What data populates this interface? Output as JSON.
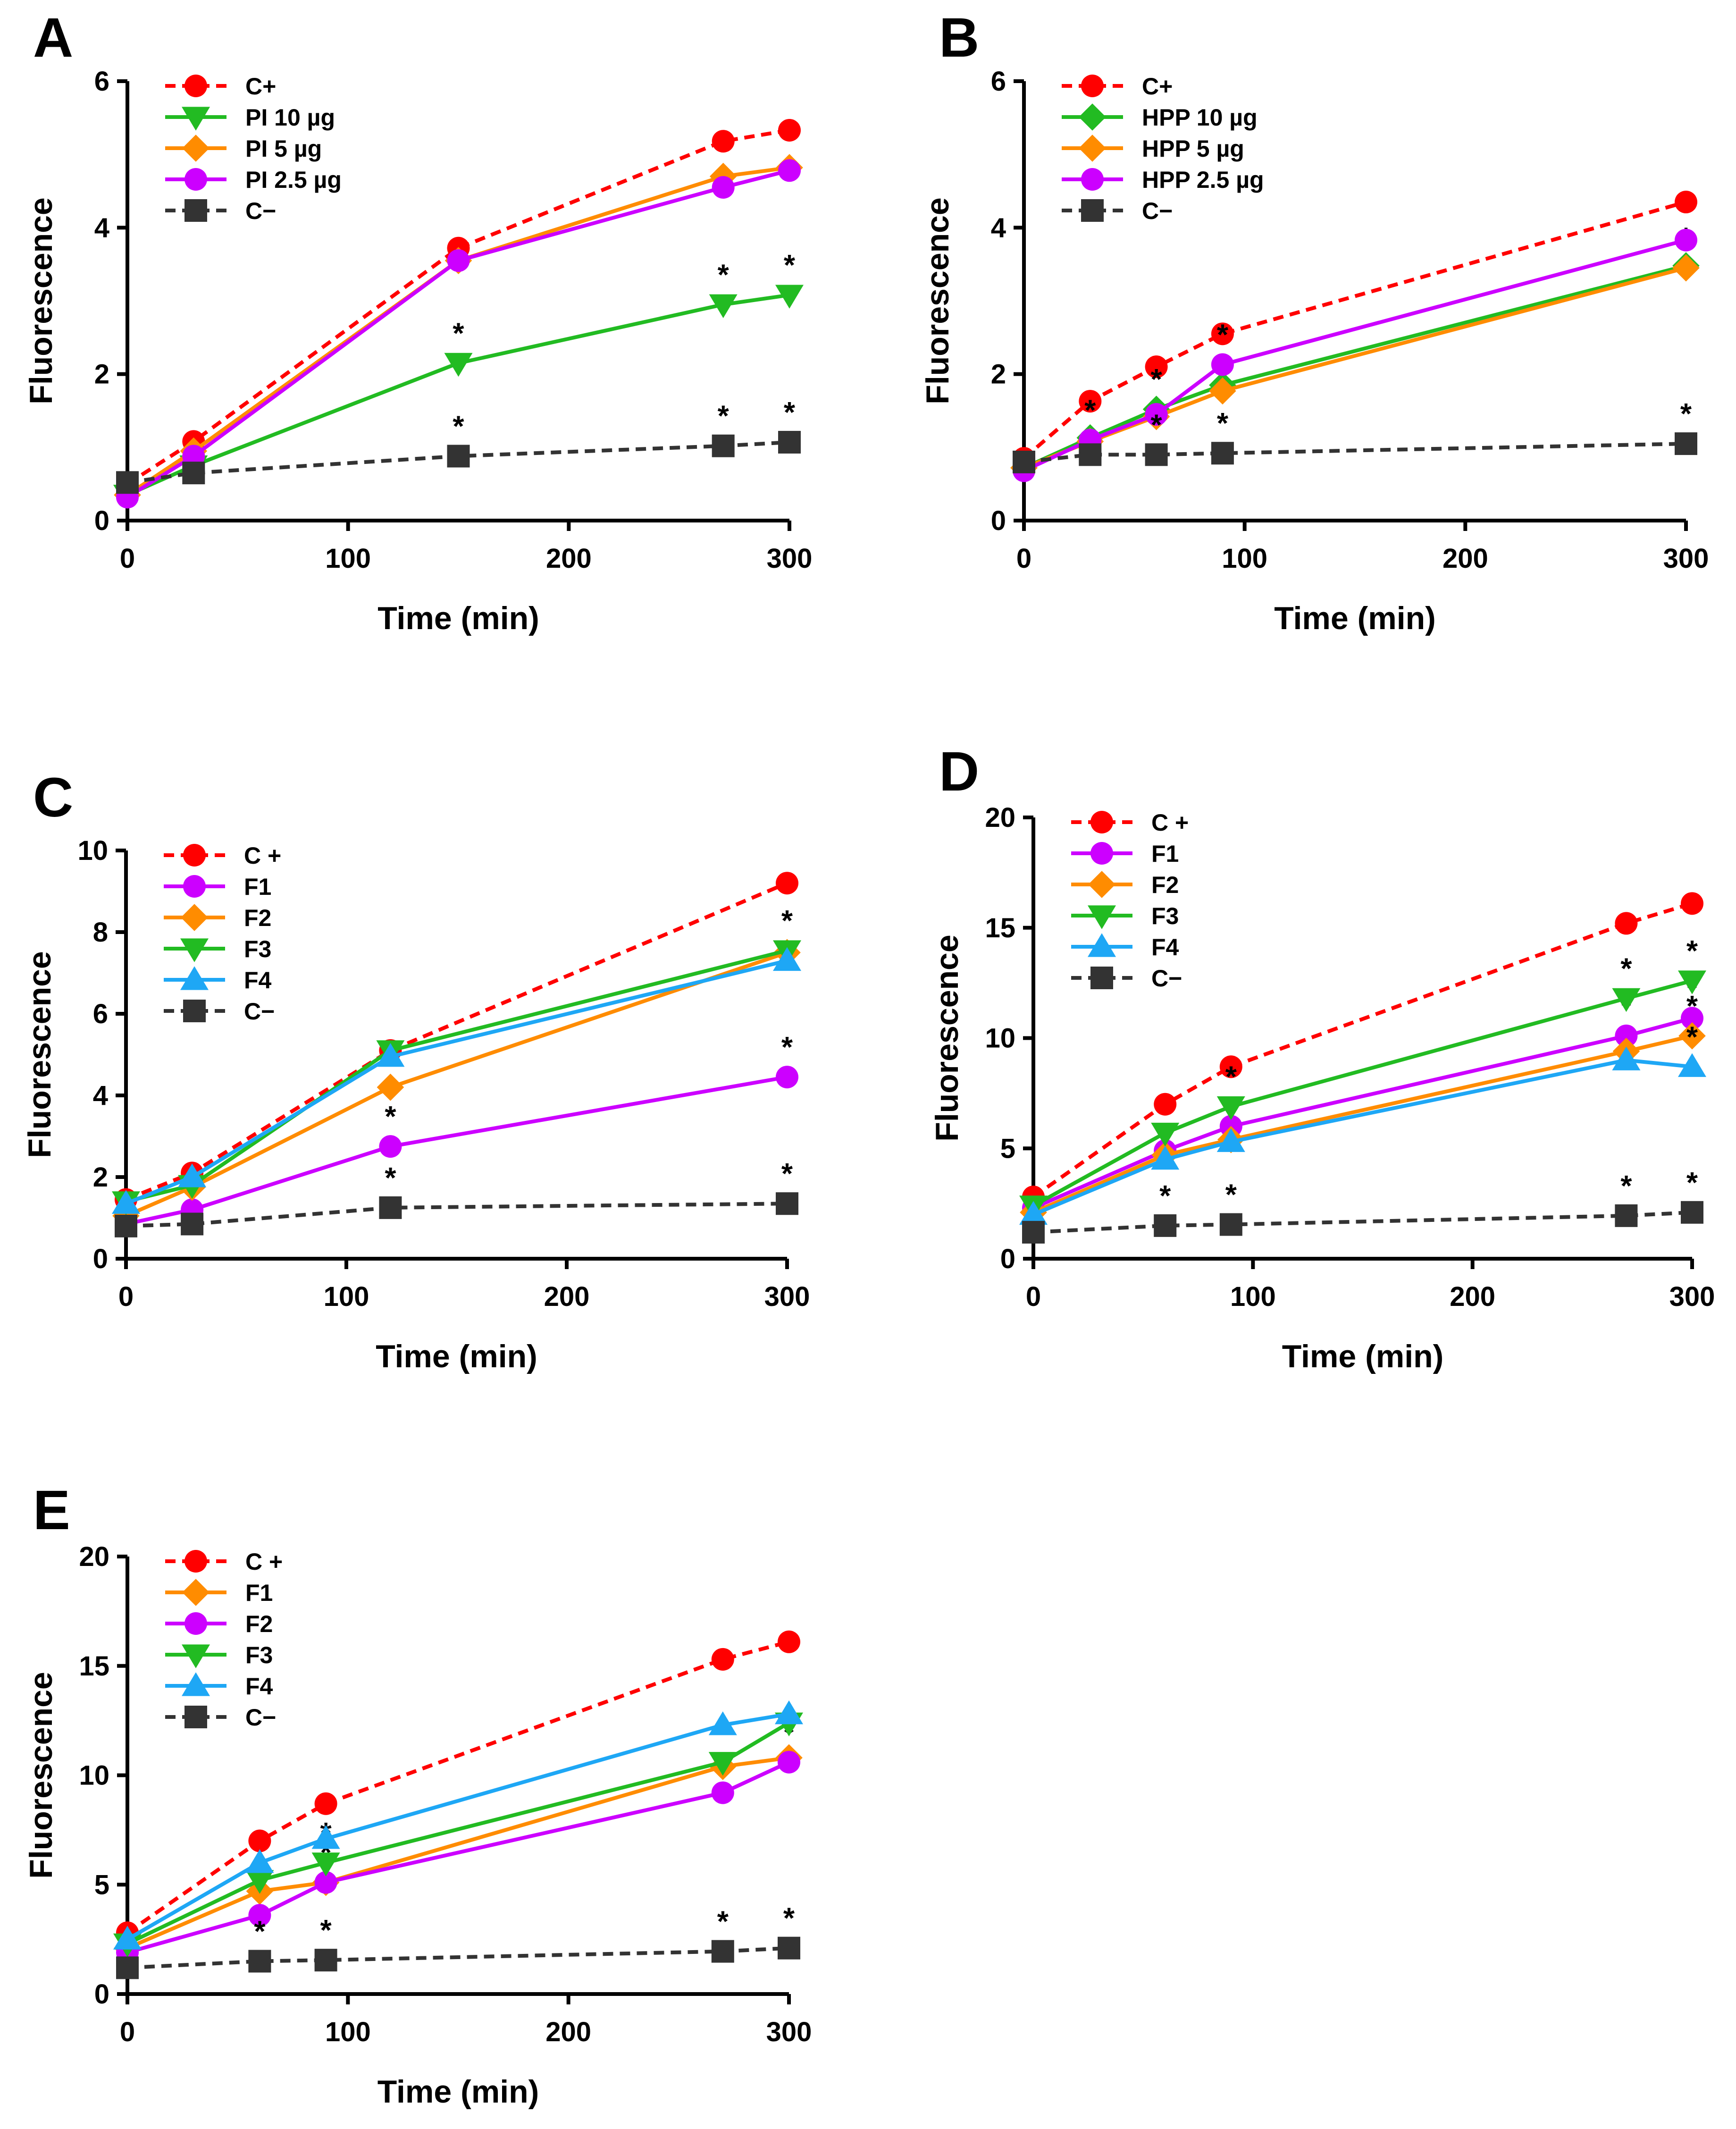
{
  "chart_data": [
    {
      "panel": "A",
      "type": "line",
      "xlabel": "Time (min)",
      "ylabel": "Fluorescence",
      "xlim": [
        0,
        300
      ],
      "ylim": [
        0,
        6
      ],
      "xticks": [
        0,
        100,
        200,
        300
      ],
      "yticks": [
        0,
        2,
        4,
        6
      ],
      "legend_position": "top-left",
      "series": [
        {
          "name": "C+",
          "color": "#ff0000",
          "dashed": true,
          "marker": "circle",
          "x": [
            0,
            30,
            150,
            270,
            300
          ],
          "y": [
            0.5,
            1.08,
            3.72,
            5.18,
            5.33
          ],
          "stars": []
        },
        {
          "name": "PI 10 µg",
          "color": "#22bb22",
          "dashed": false,
          "marker": "triangle-down",
          "x": [
            0,
            30,
            150,
            270,
            300
          ],
          "y": [
            0.35,
            0.75,
            2.15,
            2.95,
            3.08
          ],
          "stars": [
            150,
            270,
            300
          ]
        },
        {
          "name": "PI 5 µg",
          "color": "#ff8c00",
          "dashed": false,
          "marker": "diamond",
          "x": [
            0,
            30,
            150,
            270,
            300
          ],
          "y": [
            0.35,
            0.95,
            3.55,
            4.7,
            4.82
          ],
          "stars": []
        },
        {
          "name": "PI 2.5 µg",
          "color": "#cc00ff",
          "dashed": false,
          "marker": "circle",
          "x": [
            0,
            30,
            150,
            270,
            300
          ],
          "y": [
            0.32,
            0.88,
            3.55,
            4.55,
            4.78
          ],
          "stars": []
        },
        {
          "name": "C−",
          "color": "#333333",
          "dashed": true,
          "marker": "square",
          "x": [
            0,
            30,
            150,
            270,
            300
          ],
          "y": [
            0.52,
            0.65,
            0.88,
            1.02,
            1.07
          ],
          "stars": [
            150,
            270,
            300
          ]
        }
      ]
    },
    {
      "panel": "B",
      "type": "line",
      "xlabel": "Time (min)",
      "ylabel": "Fluorescence",
      "xlim": [
        0,
        300
      ],
      "ylim": [
        0,
        6
      ],
      "xticks": [
        0,
        100,
        200,
        300
      ],
      "yticks": [
        0,
        2,
        4,
        6
      ],
      "legend_position": "top-left",
      "series": [
        {
          "name": "C+",
          "color": "#ff0000",
          "dashed": true,
          "marker": "circle",
          "x": [
            0,
            30,
            60,
            90,
            300
          ],
          "y": [
            0.85,
            1.63,
            2.1,
            2.55,
            4.35
          ],
          "stars": []
        },
        {
          "name": "HPP 10 µg",
          "color": "#22bb22",
          "dashed": false,
          "marker": "diamond",
          "x": [
            0,
            30,
            60,
            90,
            300
          ],
          "y": [
            0.72,
            1.13,
            1.52,
            1.85,
            3.48
          ],
          "stars": [
            60
          ]
        },
        {
          "name": "HPP 5 µg",
          "color": "#ff8c00",
          "dashed": false,
          "marker": "diamond",
          "x": [
            0,
            30,
            60,
            90,
            300
          ],
          "y": [
            0.72,
            1.08,
            1.42,
            1.77,
            3.45
          ],
          "stars": [
            300
          ]
        },
        {
          "name": "HPP 2.5 µg",
          "color": "#cc00ff",
          "dashed": false,
          "marker": "circle",
          "x": [
            0,
            30,
            60,
            90,
            300
          ],
          "y": [
            0.68,
            1.1,
            1.45,
            2.13,
            3.83
          ],
          "stars": [
            30,
            90
          ]
        },
        {
          "name": "C−",
          "color": "#333333",
          "dashed": true,
          "marker": "square",
          "x": [
            0,
            30,
            60,
            90,
            300
          ],
          "y": [
            0.8,
            0.9,
            0.9,
            0.92,
            1.05
          ],
          "stars": [
            60,
            90,
            300
          ]
        }
      ]
    },
    {
      "panel": "C",
      "type": "line",
      "xlabel": "Time (min)",
      "ylabel": "Fluorescence",
      "xlim": [
        0,
        300
      ],
      "ylim": [
        0,
        10
      ],
      "xticks": [
        0,
        100,
        200,
        300
      ],
      "yticks": [
        0,
        2,
        4,
        6,
        8,
        10
      ],
      "legend_position": "top-left",
      "series": [
        {
          "name": "C +",
          "color": "#ff0000",
          "dashed": true,
          "marker": "circle",
          "x": [
            0,
            30,
            120,
            300
          ],
          "y": [
            1.45,
            2.1,
            5.1,
            9.2
          ],
          "stars": []
        },
        {
          "name": "F1",
          "color": "#cc00ff",
          "dashed": false,
          "marker": "circle",
          "x": [
            0,
            30,
            120,
            300
          ],
          "y": [
            0.85,
            1.2,
            2.75,
            4.45
          ],
          "stars": [
            120,
            300
          ]
        },
        {
          "name": "F2",
          "color": "#ff8c00",
          "dashed": false,
          "marker": "diamond",
          "x": [
            0,
            30,
            120,
            300
          ],
          "y": [
            1.05,
            1.75,
            4.2,
            7.5
          ],
          "stars": [
            120
          ]
        },
        {
          "name": "F3",
          "color": "#22bb22",
          "dashed": false,
          "marker": "triangle-down",
          "x": [
            0,
            30,
            120,
            300
          ],
          "y": [
            1.4,
            1.8,
            5.1,
            7.55
          ],
          "stars": [
            300
          ]
        },
        {
          "name": "F4",
          "color": "#1ea7f5",
          "dashed": false,
          "marker": "triangle-up",
          "x": [
            0,
            30,
            120,
            300
          ],
          "y": [
            1.35,
            2.0,
            4.95,
            7.3
          ],
          "stars": []
        },
        {
          "name": "C−",
          "color": "#333333",
          "dashed": true,
          "marker": "square",
          "x": [
            0,
            30,
            120,
            300
          ],
          "y": [
            0.8,
            0.85,
            1.25,
            1.35
          ],
          "stars": [
            120,
            300
          ]
        }
      ]
    },
    {
      "panel": "D",
      "type": "line",
      "xlabel": "Time (min)",
      "ylabel": "Fluorescence",
      "xlim": [
        0,
        300
      ],
      "ylim": [
        0,
        20
      ],
      "xticks": [
        0,
        100,
        200,
        300
      ],
      "yticks": [
        0,
        5,
        10,
        15,
        20
      ],
      "legend_position": "top-left",
      "series": [
        {
          "name": "C +",
          "color": "#ff0000",
          "dashed": true,
          "marker": "circle",
          "x": [
            0,
            60,
            90,
            270,
            300
          ],
          "y": [
            2.8,
            7.0,
            8.7,
            15.2,
            16.1
          ],
          "stars": []
        },
        {
          "name": "F1",
          "color": "#cc00ff",
          "dashed": false,
          "marker": "circle",
          "x": [
            0,
            60,
            90,
            270,
            300
          ],
          "y": [
            2.3,
            4.9,
            6.0,
            10.1,
            10.9
          ],
          "stars": [
            270,
            300
          ]
        },
        {
          "name": "F2",
          "color": "#ff8c00",
          "dashed": false,
          "marker": "diamond",
          "x": [
            0,
            60,
            90,
            270,
            300
          ],
          "y": [
            2.1,
            4.7,
            5.4,
            9.4,
            10.1
          ],
          "stars": [
            300
          ]
        },
        {
          "name": "F3",
          "color": "#22bb22",
          "dashed": false,
          "marker": "triangle-down",
          "x": [
            0,
            60,
            90,
            270,
            300
          ],
          "y": [
            2.4,
            5.7,
            6.9,
            11.8,
            12.6
          ],
          "stars": [
            90,
            270,
            300
          ]
        },
        {
          "name": "F4",
          "color": "#1ea7f5",
          "dashed": false,
          "marker": "triangle-up",
          "x": [
            0,
            60,
            90,
            270,
            300
          ],
          "y": [
            2.0,
            4.5,
            5.3,
            9.0,
            8.7
          ],
          "stars": [
            300
          ]
        },
        {
          "name": "C−",
          "color": "#333333",
          "dashed": true,
          "marker": "square",
          "x": [
            0,
            60,
            90,
            270,
            300
          ],
          "y": [
            1.2,
            1.5,
            1.55,
            1.95,
            2.1
          ],
          "stars": [
            60,
            90,
            270,
            300
          ]
        }
      ]
    },
    {
      "panel": "E",
      "type": "line",
      "xlabel": "Time (min)",
      "ylabel": "Fluorescence",
      "xlim": [
        0,
        300
      ],
      "ylim": [
        0,
        20
      ],
      "xticks": [
        0,
        100,
        200,
        300
      ],
      "yticks": [
        0,
        5,
        10,
        15,
        20
      ],
      "legend_position": "top-left",
      "series": [
        {
          "name": "C +",
          "color": "#ff0000",
          "dashed": true,
          "marker": "circle",
          "x": [
            0,
            60,
            90,
            270,
            300
          ],
          "y": [
            2.8,
            7.0,
            8.7,
            15.3,
            16.1
          ],
          "stars": []
        },
        {
          "name": "F1",
          "color": "#ff8c00",
          "dashed": false,
          "marker": "diamond",
          "x": [
            0,
            60,
            90,
            270,
            300
          ],
          "y": [
            2.1,
            4.7,
            5.1,
            10.4,
            10.8
          ],
          "stars": []
        },
        {
          "name": "F2",
          "color": "#cc00ff",
          "dashed": false,
          "marker": "circle",
          "x": [
            0,
            60,
            90,
            270,
            300
          ],
          "y": [
            1.9,
            3.6,
            5.1,
            9.2,
            10.6
          ],
          "stars": [
            60,
            90,
            270,
            300
          ]
        },
        {
          "name": "F3",
          "color": "#22bb22",
          "dashed": false,
          "marker": "triangle-down",
          "x": [
            0,
            60,
            90,
            270,
            300
          ],
          "y": [
            2.3,
            5.2,
            6.0,
            10.6,
            12.4
          ],
          "stars": [
            90
          ]
        },
        {
          "name": "F4",
          "color": "#1ea7f5",
          "dashed": false,
          "marker": "triangle-up",
          "x": [
            0,
            60,
            90,
            270,
            300
          ],
          "y": [
            2.5,
            6.0,
            7.1,
            12.3,
            12.8
          ],
          "stars": []
        },
        {
          "name": "C−",
          "color": "#333333",
          "dashed": true,
          "marker": "square",
          "x": [
            0,
            60,
            90,
            270,
            300
          ],
          "y": [
            1.2,
            1.5,
            1.55,
            1.95,
            2.1
          ],
          "stars": [
            60,
            90,
            270,
            300
          ]
        }
      ]
    }
  ]
}
